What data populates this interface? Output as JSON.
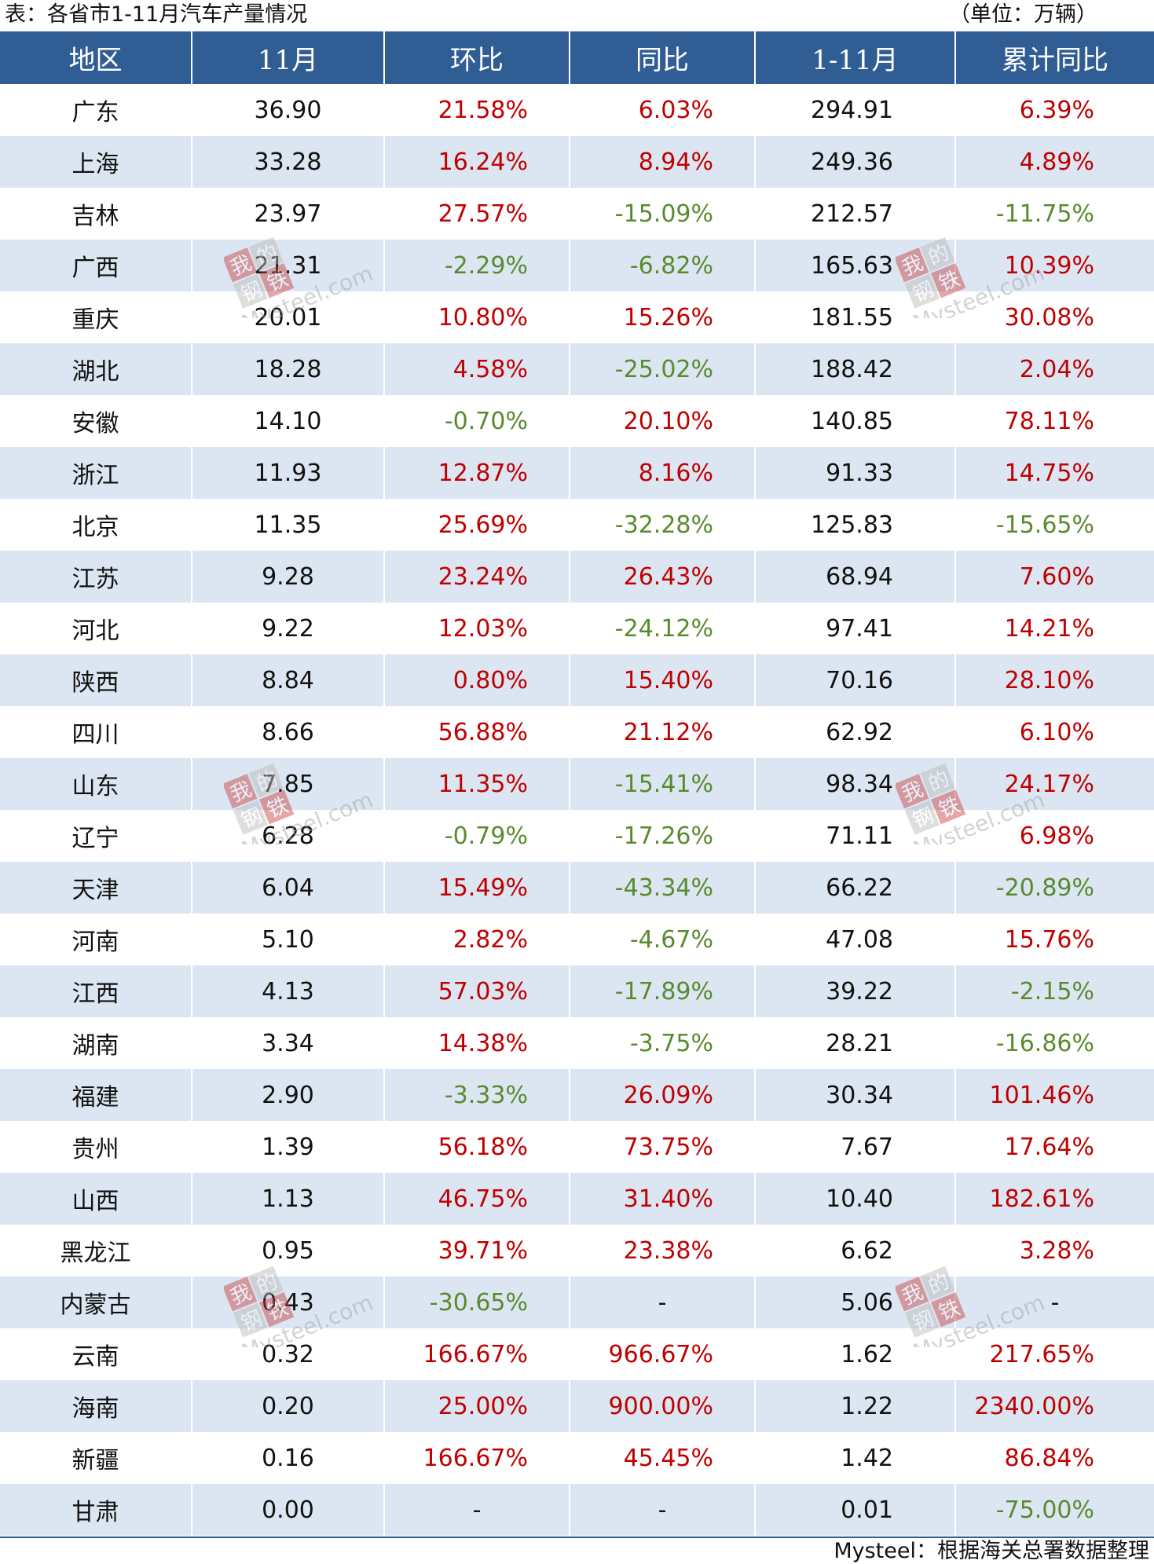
{
  "title": "表：各省市1-11月汽车产量情况",
  "unit": "（单位：万辆）",
  "source": "Mysteel：根据海关总署数据整理",
  "colors": {
    "header_bg": "#2f5d94",
    "stripe": "#dce6f2",
    "positive": "#c00000",
    "negative": "#5a8a2e"
  },
  "columns": [
    "地区",
    "11月",
    "环比",
    "同比",
    "1-11月",
    "累计同比"
  ],
  "rows": [
    [
      "广东",
      "36.90",
      "21.58%",
      "6.03%",
      "294.91",
      "6.39%"
    ],
    [
      "上海",
      "33.28",
      "16.24%",
      "8.94%",
      "249.36",
      "4.89%"
    ],
    [
      "吉林",
      "23.97",
      "27.57%",
      "-15.09%",
      "212.57",
      "-11.75%"
    ],
    [
      "广西",
      "21.31",
      "-2.29%",
      "-6.82%",
      "165.63",
      "10.39%"
    ],
    [
      "重庆",
      "20.01",
      "10.80%",
      "15.26%",
      "181.55",
      "30.08%"
    ],
    [
      "湖北",
      "18.28",
      "4.58%",
      "-25.02%",
      "188.42",
      "2.04%"
    ],
    [
      "安徽",
      "14.10",
      "-0.70%",
      "20.10%",
      "140.85",
      "78.11%"
    ],
    [
      "浙江",
      "11.93",
      "12.87%",
      "8.16%",
      "91.33",
      "14.75%"
    ],
    [
      "北京",
      "11.35",
      "25.69%",
      "-32.28%",
      "125.83",
      "-15.65%"
    ],
    [
      "江苏",
      "9.28",
      "23.24%",
      "26.43%",
      "68.94",
      "7.60%"
    ],
    [
      "河北",
      "9.22",
      "12.03%",
      "-24.12%",
      "97.41",
      "14.21%"
    ],
    [
      "陕西",
      "8.84",
      "0.80%",
      "15.40%",
      "70.16",
      "28.10%"
    ],
    [
      "四川",
      "8.66",
      "56.88%",
      "21.12%",
      "62.92",
      "6.10%"
    ],
    [
      "山东",
      "7.85",
      "11.35%",
      "-15.41%",
      "98.34",
      "24.17%"
    ],
    [
      "辽宁",
      "6.28",
      "-0.79%",
      "-17.26%",
      "71.11",
      "6.98%"
    ],
    [
      "天津",
      "6.04",
      "15.49%",
      "-43.34%",
      "66.22",
      "-20.89%"
    ],
    [
      "河南",
      "5.10",
      "2.82%",
      "-4.67%",
      "47.08",
      "15.76%"
    ],
    [
      "江西",
      "4.13",
      "57.03%",
      "-17.89%",
      "39.22",
      "-2.15%"
    ],
    [
      "湖南",
      "3.34",
      "14.38%",
      "-3.75%",
      "28.21",
      "-16.86%"
    ],
    [
      "福建",
      "2.90",
      "-3.33%",
      "26.09%",
      "30.34",
      "101.46%"
    ],
    [
      "贵州",
      "1.39",
      "56.18%",
      "73.75%",
      "7.67",
      "17.64%"
    ],
    [
      "山西",
      "1.13",
      "46.75%",
      "31.40%",
      "10.40",
      "182.61%"
    ],
    [
      "黑龙江",
      "0.95",
      "39.71%",
      "23.38%",
      "6.62",
      "3.28%"
    ],
    [
      "内蒙古",
      "0.43",
      "-30.65%",
      "-",
      "5.06",
      "-"
    ],
    [
      "云南",
      "0.32",
      "166.67%",
      "966.67%",
      "1.62",
      "217.65%"
    ],
    [
      "海南",
      "0.20",
      "25.00%",
      "900.00%",
      "1.22",
      "2340.00%"
    ],
    [
      "新疆",
      "0.16",
      "166.67%",
      "45.45%",
      "1.42",
      "86.84%"
    ],
    [
      "甘肃",
      "0.00",
      "-",
      "-",
      "0.01",
      "-75.00%"
    ]
  ],
  "watermark": {
    "logo_text": "我的钢铁",
    "site_text": "Mysteel.com"
  }
}
